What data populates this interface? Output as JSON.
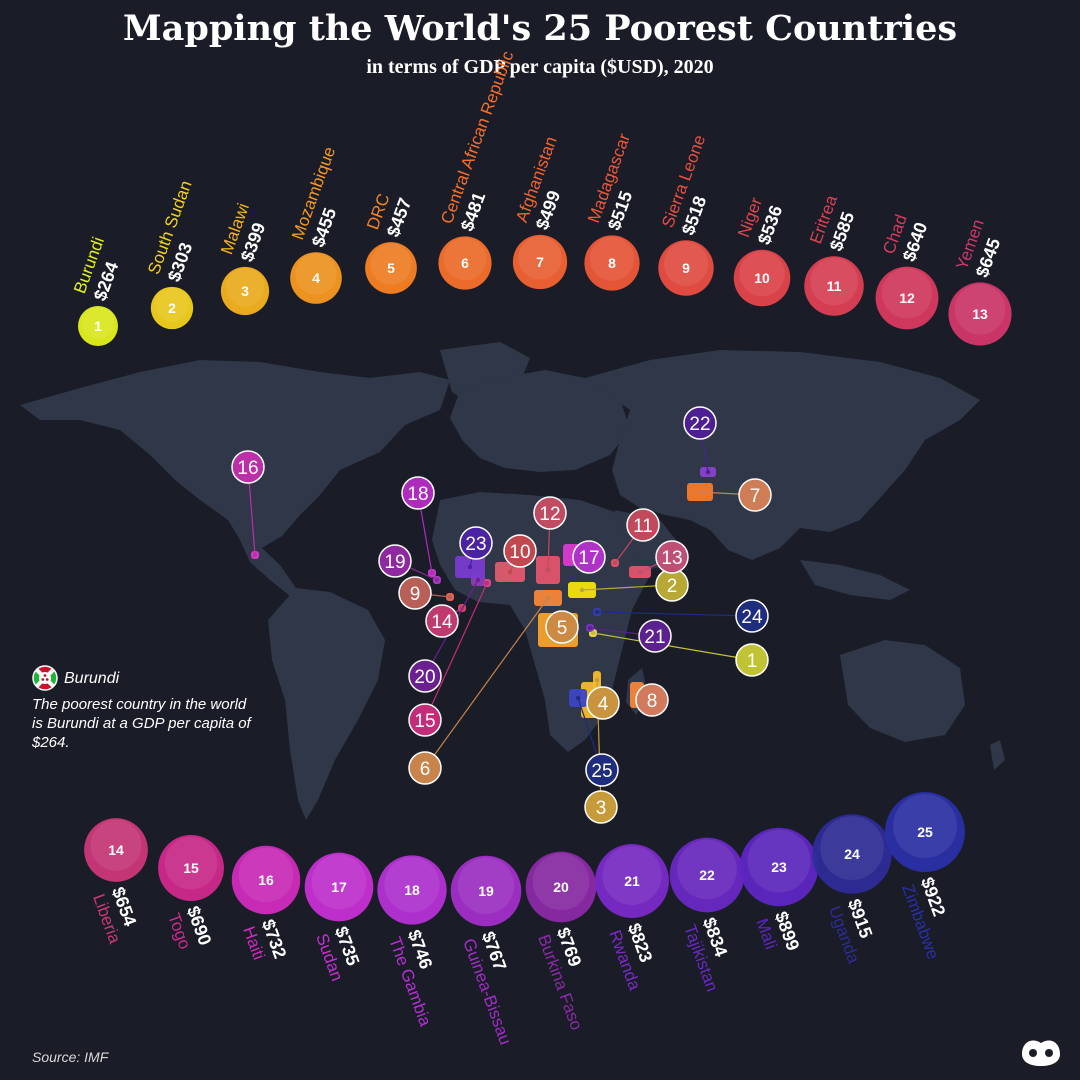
{
  "header": {
    "title": "Mapping the World's 25 Poorest Countries",
    "subtitle": "in terms of GDP per capita ($USD), 2020"
  },
  "callout": {
    "country": "Burundi",
    "text": "The poorest country in the world is Burundi at a GDP per capita of $264.",
    "flag_icon": "burundi-flag-icon"
  },
  "source": "Source: IMF",
  "logo_icon": "visual-capitalist-logo-icon",
  "chart_data": {
    "type": "bar",
    "title": "Mapping the World's 25 Poorest Countries",
    "subtitle": "in terms of GDP per capita ($USD), 2020",
    "unit": "$USD",
    "ranks": [
      1,
      2,
      3,
      4,
      5,
      6,
      7,
      8,
      9,
      10,
      11,
      12,
      13,
      14,
      15,
      16,
      17,
      18,
      19,
      20,
      21,
      22,
      23,
      24,
      25
    ],
    "categories": [
      "Burundi",
      "South Sudan",
      "Malawi",
      "Mozambique",
      "DRC",
      "Central African Republic",
      "Afghanistan",
      "Madagascar",
      "Sierra Leone",
      "Niger",
      "Eritrea",
      "Chad",
      "Yemen",
      "Liberia",
      "Togo",
      "Haiti",
      "Sudan",
      "The Gambia",
      "Guinea-Bissau",
      "Burkina Faso",
      "Rwanda",
      "Tajikistan",
      "Mali",
      "Uganda",
      "Zimbabwe"
    ],
    "values": [
      264,
      303,
      399,
      455,
      457,
      481,
      499,
      515,
      518,
      536,
      585,
      640,
      645,
      654,
      690,
      732,
      735,
      746,
      767,
      769,
      823,
      834,
      899,
      915,
      922
    ],
    "value_labels": [
      "$264",
      "$303",
      "$399",
      "$455",
      "$457",
      "$481",
      "$499",
      "$515",
      "$518",
      "$536",
      "$585",
      "$640",
      "$645",
      "$654",
      "$690",
      "$732",
      "$735",
      "$746",
      "$767",
      "$769",
      "$823",
      "$834",
      "$899",
      "$915",
      "$922"
    ],
    "colors": [
      "#e3f21b",
      "#f3d11b",
      "#f6b21c",
      "#f8991f",
      "#f98222",
      "#f7702a",
      "#f36331",
      "#ef5738",
      "#ea4e41",
      "#e4454a",
      "#df4054",
      "#d93a5f",
      "#d3376a",
      "#cd3779",
      "#d1298c",
      "#d12bbd",
      "#c62fd3",
      "#b530d5",
      "#a22ec8",
      "#8c2aa8",
      "#7b2ac8",
      "#6a28c4",
      "#5e26c3",
      "#2e2c98",
      "#2a2fa8"
    ],
    "map_markers": {
      "label_colors": [
        "#c0c434",
        "#b8a835",
        "#c79a3a",
        "#c89440",
        "#cd8a44",
        "#c9844c",
        "#cf7d55",
        "#d27a5e",
        "#b85f57",
        "#c2484f",
        "#c04a5c",
        "#c04c63",
        "#c04f76",
        "#c0396f",
        "#c32c79",
        "#bb2fa8",
        "#b033c9",
        "#ad2cbc",
        "#8d2aa0",
        "#6a2090",
        "#5b218e",
        "#4d1f95",
        "#4a22a4",
        "#1e2d7e",
        "#1e2d7e"
      ],
      "region_colors": [
        "#fcd75d",
        "#f5e00c",
        "#f6ba2a",
        "#f6ba2a",
        "#f8a22a",
        "#f7853a",
        "#f77a2a",
        "#f7853a",
        "#f06a52",
        "#e05a6d",
        "#e2536c",
        "#e2536c",
        "#e2536c",
        "#e1476a",
        "#e34b8d",
        "#d83bd0",
        "#d83bd0",
        "#cc3dd3",
        "#b23bcb",
        "#8e3cb5",
        "#7b34c4",
        "#8a40d0",
        "#7a3ad0",
        "#3c3cb5",
        "#3c44c4"
      ]
    }
  }
}
